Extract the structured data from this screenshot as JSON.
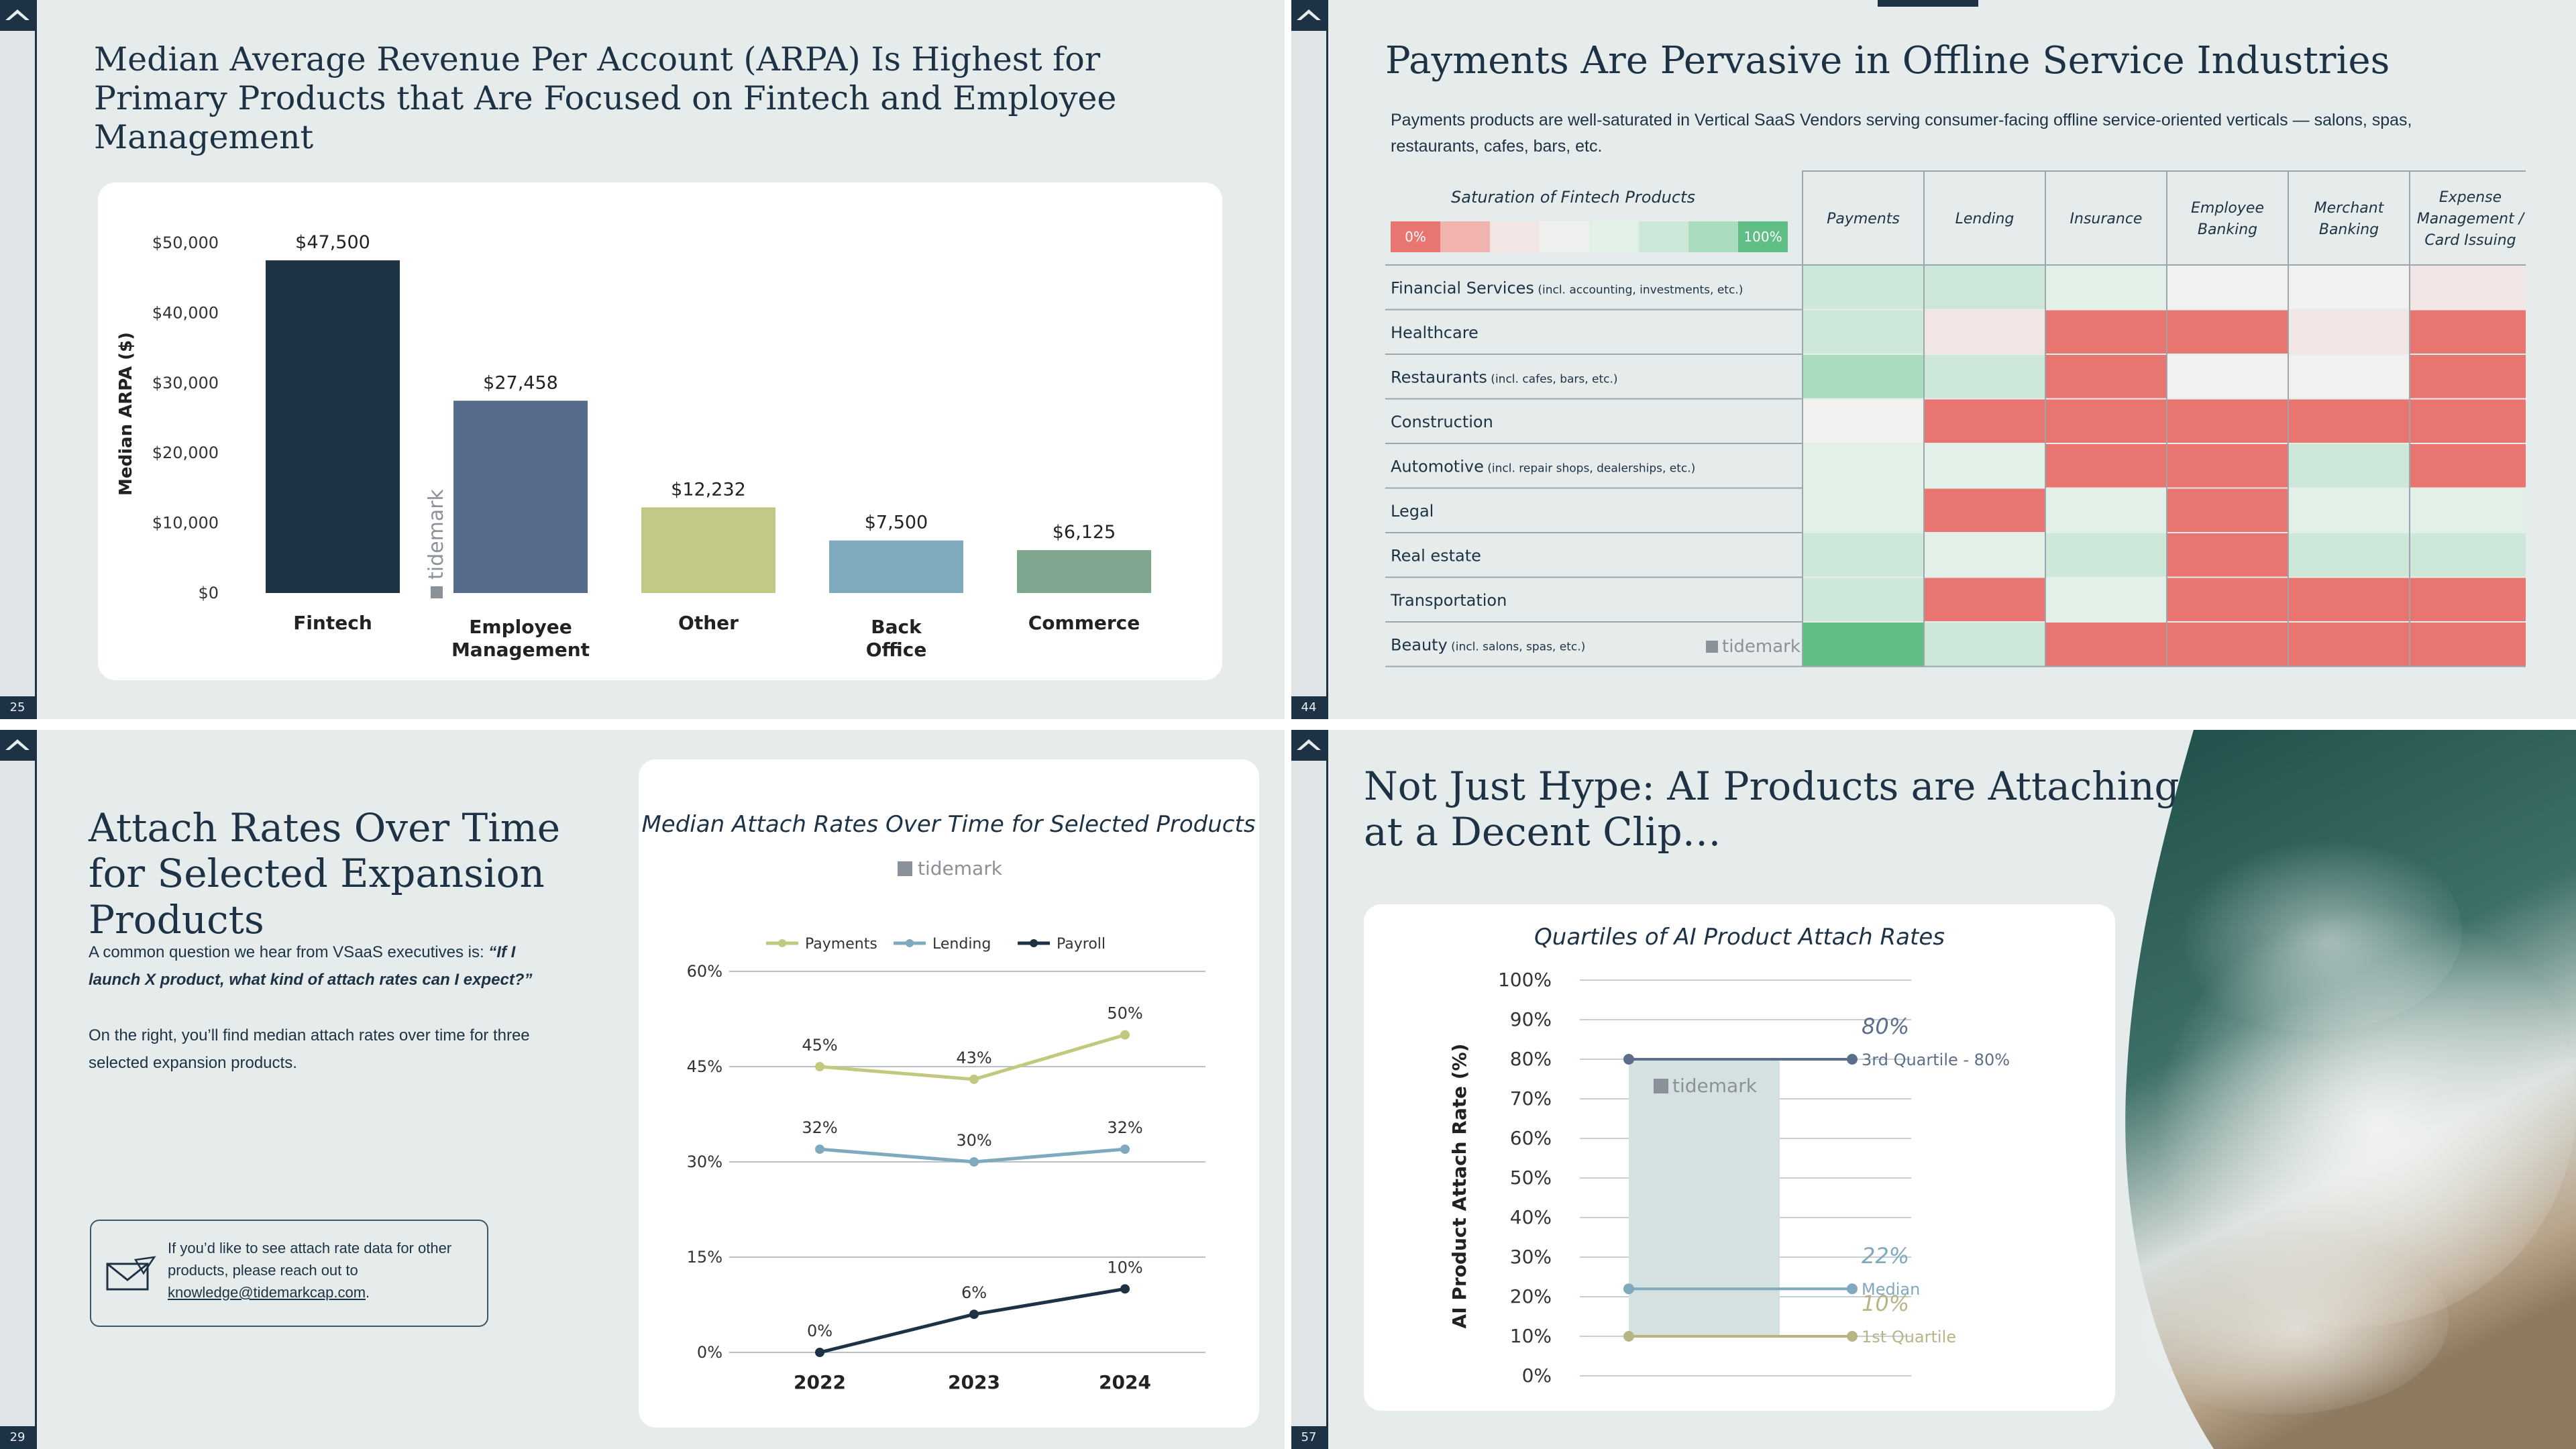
{
  "slides": [
    {
      "page_number": "25",
      "title": "Median Average Revenue Per Account (ARPA) Is Highest for Primary Products that Are Focused on Fintech and Employee Management",
      "watermark": "tidemark"
    },
    {
      "page_number": "44",
      "title": "Payments Are Pervasive in Offline Service Industries",
      "subtitle": "Payments products are well-saturated in Vertical SaaS Vendors serving consumer-facing offline service-oriented verticals — salons, spas, restaurants, cafes, bars, etc.",
      "legend_title": "Saturation of Fintech Products",
      "legend_min": "0%",
      "legend_max": "100%",
      "watermark": "tidemark"
    },
    {
      "page_number": "29",
      "title": "Attach Rates Over Time for Selected Expansion Products",
      "body_1_plain": "A common question we hear from VSaaS executives is: ",
      "body_1_quote": "“If I launch X product, what kind of attach rates can I expect?”",
      "body_2": "On the right, you’ll find median attach rates over time for three selected expansion products.",
      "callout_text": "If you’d like to see attach rate data for other products, please reach out to",
      "callout_email": "knowledge@tidemarkcap.com",
      "callout_period": ".",
      "watermark": "tidemark"
    },
    {
      "page_number": "57",
      "title": "Not Just Hype: AI Products are Attaching at a Decent Clip…",
      "watermark": "tidemark"
    }
  ],
  "chart_data": [
    {
      "type": "bar",
      "title": "",
      "ylabel": "Median ARPA ($)",
      "categories": [
        "Fintech",
        "Employee Management",
        "Other",
        "Back Office",
        "Commerce"
      ],
      "values": [
        47500,
        27458,
        12232,
        7500,
        6125
      ],
      "value_labels": [
        "$47,500",
        "$27,458",
        "$12,232",
        "$7,500",
        "$6,125"
      ],
      "colors": [
        "#1e3445",
        "#566b8c",
        "#c2c987",
        "#7fa9bd",
        "#7fa68e"
      ],
      "ylim": [
        0,
        50000
      ],
      "yticks": [
        "$0",
        "$10,000",
        "$20,000",
        "$30,000",
        "$40,000",
        "$50,000"
      ],
      "grid": false
    },
    {
      "type": "heatmap",
      "columns": [
        "Payments",
        "Lending",
        "Insurance",
        "Employee Banking",
        "Merchant Banking",
        "Expense Management / Card Issuing"
      ],
      "rows": [
        {
          "label": "Financial Services",
          "note": "(incl. accounting, investments, etc.)",
          "levels": [
            5,
            5,
            4,
            3,
            3,
            2
          ]
        },
        {
          "label": "Healthcare",
          "note": "",
          "levels": [
            5,
            2,
            0,
            0,
            2,
            0
          ]
        },
        {
          "label": "Restaurants",
          "note": "(incl. cafes, bars, etc.)",
          "levels": [
            6,
            5,
            0,
            3,
            3,
            0
          ]
        },
        {
          "label": "Construction",
          "note": "",
          "levels": [
            3,
            0,
            0,
            0,
            0,
            0
          ]
        },
        {
          "label": "Automotive",
          "note": "(incl. repair shops, dealerships, etc.)",
          "levels": [
            4,
            4,
            0,
            0,
            5,
            0
          ]
        },
        {
          "label": "Legal",
          "note": "",
          "levels": [
            4,
            0,
            4,
            0,
            4,
            4
          ]
        },
        {
          "label": "Real estate",
          "note": "",
          "levels": [
            5,
            4,
            5,
            0,
            5,
            5
          ]
        },
        {
          "label": "Transportation",
          "note": "",
          "levels": [
            5,
            0,
            4,
            0,
            0,
            0
          ]
        },
        {
          "label": "Beauty",
          "note": "(incl. salons, spas, etc.)",
          "levels": [
            7,
            5,
            0,
            0,
            0,
            0
          ]
        }
      ],
      "scale_colors": [
        "#e8756f",
        "#f0b3ae",
        "#f2e6e4",
        "#f1f1f0",
        "#e3f0e8",
        "#cde8d8",
        "#a9dbbd",
        "#5fbd86"
      ],
      "legend_scale": [
        "#e8756f",
        "#f0b3ae",
        "#f2e6e4",
        "#eef0ee",
        "#e3f0e8",
        "#cde8d8",
        "#a9dbbd",
        "#5fbd86"
      ]
    },
    {
      "type": "line",
      "title": "Median Attach Rates Over Time for Selected Products",
      "x": [
        "2022",
        "2023",
        "2024"
      ],
      "series": [
        {
          "name": "Payments",
          "values": [
            45,
            43,
            50
          ],
          "labels": [
            "45%",
            "43%",
            "50%"
          ],
          "color": "#c2c97e"
        },
        {
          "name": "Lending",
          "values": [
            32,
            30,
            32
          ],
          "labels": [
            "32%",
            "30%",
            "32%"
          ],
          "color": "#7fa9bd"
        },
        {
          "name": "Payroll",
          "values": [
            0,
            6,
            10
          ],
          "labels": [
            "0%",
            "6%",
            "10%"
          ],
          "color": "#1d3345"
        }
      ],
      "ylim": [
        0,
        60
      ],
      "yticks": [
        "0%",
        "15%",
        "30%",
        "45%",
        "60%"
      ],
      "legend": "top",
      "grid": true
    },
    {
      "type": "bar",
      "subtype": "box-range",
      "title": "Quartiles of AI Product Attach Rates",
      "ylabel": "AI Product Attach Rate (%)",
      "ylim": [
        0,
        100
      ],
      "yticks": [
        "0%",
        "10%",
        "20%",
        "30%",
        "40%",
        "50%",
        "60%",
        "70%",
        "80%",
        "90%",
        "100%"
      ],
      "markers": [
        {
          "name": "3rd Quartile - 80%",
          "value": 80,
          "big_label": "80%",
          "color": "#5b6f8c"
        },
        {
          "name": "Median",
          "value": 22,
          "big_label": "22%",
          "color": "#7fa9bd"
        },
        {
          "name": "1st Quartile",
          "value": 10,
          "big_label": "10%",
          "color": "#b7b586"
        }
      ],
      "box_color": "#d5e1e1",
      "grid": true
    }
  ]
}
